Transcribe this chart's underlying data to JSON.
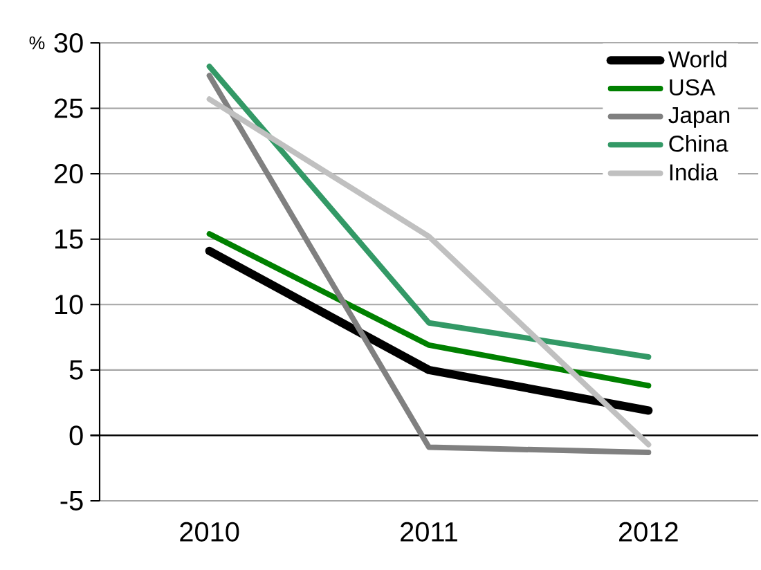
{
  "chart_data": {
    "type": "line",
    "ylabel": "%",
    "categories": [
      "2010",
      "2011",
      "2012"
    ],
    "series": [
      {
        "name": "World",
        "color": "#000000",
        "values": [
          14.1,
          5.0,
          1.9
        ]
      },
      {
        "name": "USA",
        "color": "#008000",
        "values": [
          15.4,
          6.9,
          3.8
        ]
      },
      {
        "name": "Japan",
        "color": "#808080",
        "values": [
          27.5,
          -0.9,
          -1.3
        ]
      },
      {
        "name": "China",
        "color": "#339966",
        "values": [
          28.2,
          8.6,
          6.0
        ]
      },
      {
        "name": "India",
        "color": "#c0c0c0",
        "values": [
          25.7,
          15.2,
          -0.7
        ]
      }
    ],
    "ylim": [
      -5,
      30
    ],
    "yticks": [
      -5,
      0,
      5,
      10,
      15,
      20,
      25,
      30
    ],
    "grid": "y",
    "legend": "top right",
    "marker": "none",
    "line_style": "solid"
  }
}
